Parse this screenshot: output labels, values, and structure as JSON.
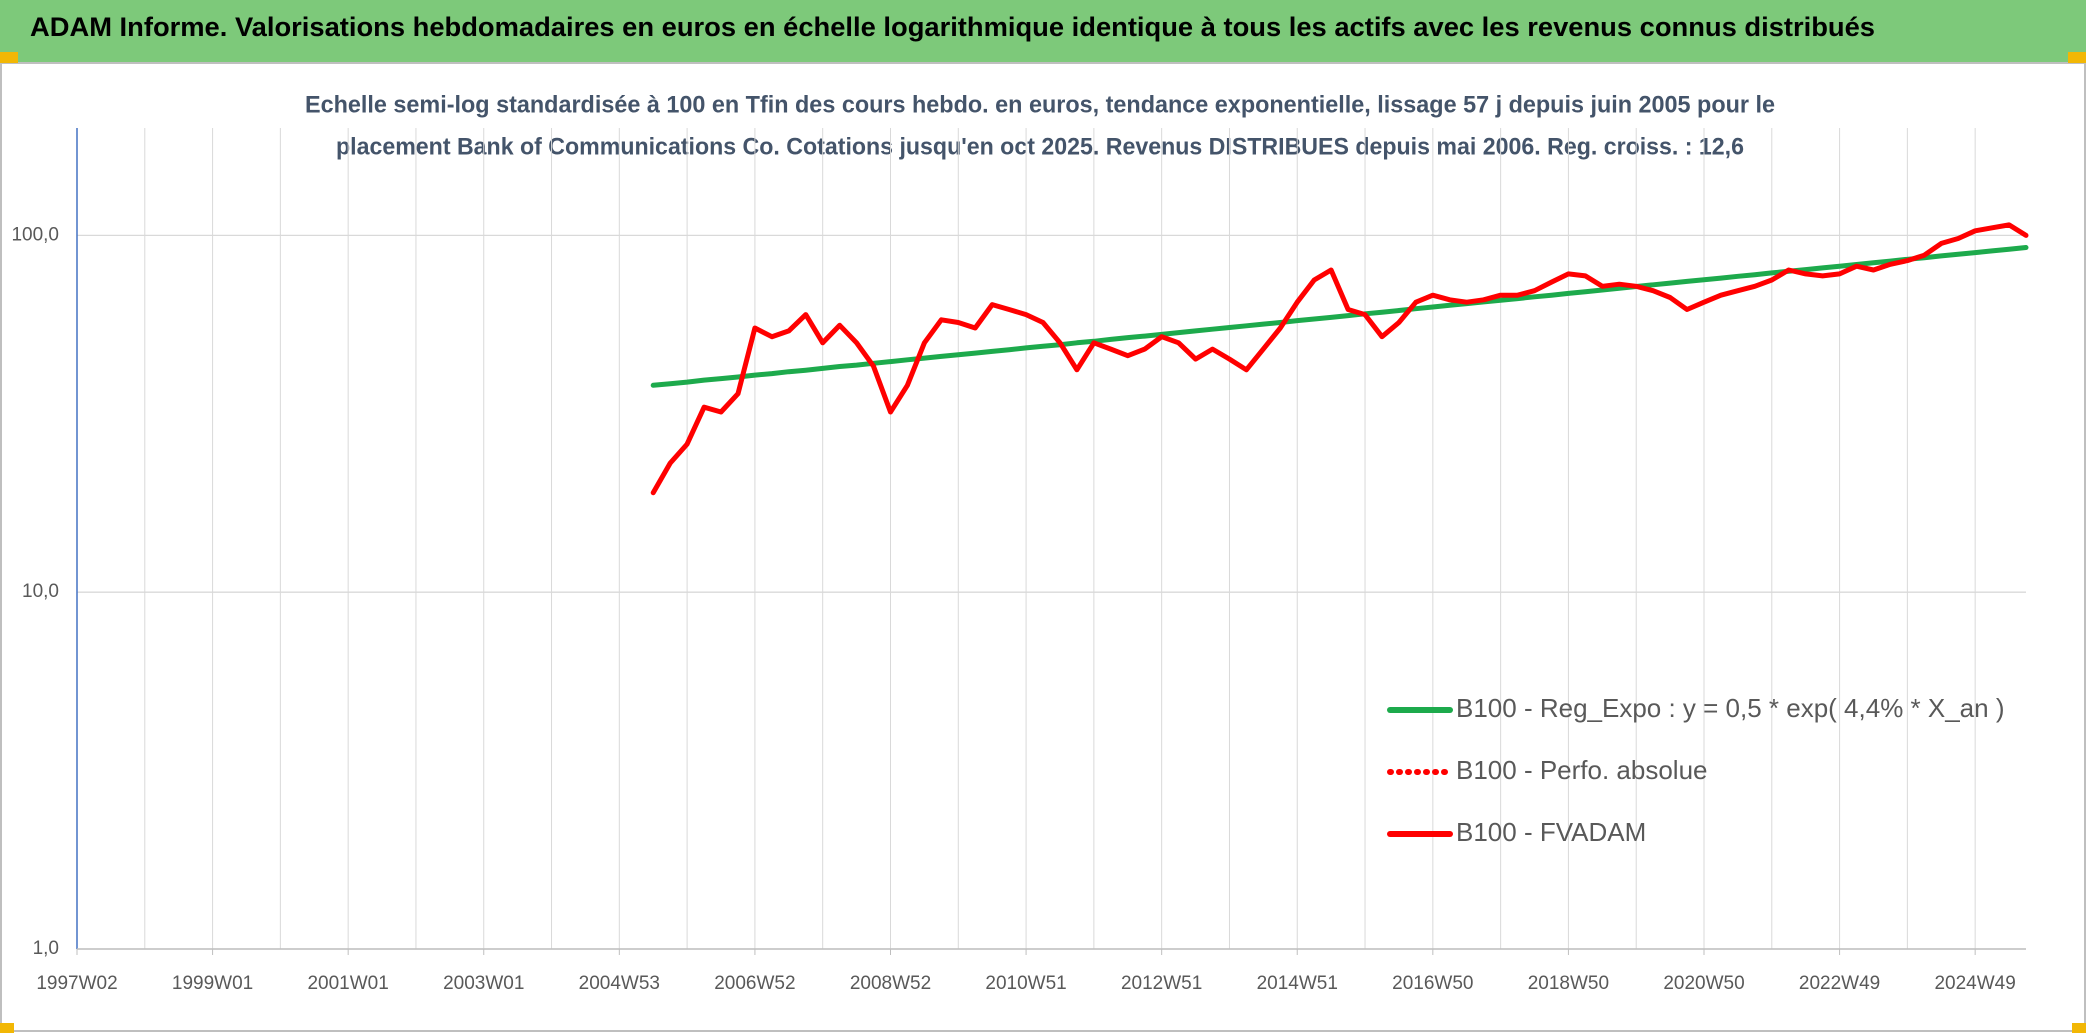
{
  "chart_data": {
    "type": "line",
    "title": "ADAM Informe. Valorisations hebdomadaires en euros en échelle logarithmique identique à tous les actifs avec les revenus connus distribués",
    "subtitle": [
      "Echelle semi-log standardisée à 100 en Tfin des cours hebdo. en euros, tendance exponentielle, lissage 57 j depuis juin 2005 pour le",
      "placement Bank of Communications Co. Cotations jusqu'en oct 2025. Revenus DISTRIBUES depuis mai 2006. Reg. croiss. : 12,6"
    ],
    "log_scale": true,
    "grid": true,
    "legend": "lower right",
    "ylim": [
      1,
      200
    ],
    "yticks": [
      {
        "value": 1,
        "label": "1,0"
      },
      {
        "value": 10,
        "label": "10,0"
      },
      {
        "value": 100,
        "label": "100,0"
      }
    ],
    "categories": [
      "1997W02",
      null,
      null,
      null,
      null,
      null,
      null,
      null,
      "1999W01",
      null,
      null,
      null,
      null,
      null,
      null,
      null,
      "2001W01",
      null,
      null,
      null,
      null,
      null,
      null,
      null,
      "2003W01",
      null,
      null,
      null,
      null,
      null,
      null,
      null,
      "2004W53",
      null,
      null,
      null,
      null,
      null,
      null,
      null,
      "2006W52",
      null,
      null,
      null,
      null,
      null,
      null,
      null,
      "2008W52",
      null,
      null,
      null,
      null,
      null,
      null,
      null,
      "2010W51",
      null,
      null,
      null,
      null,
      null,
      null,
      null,
      "2012W51",
      null,
      null,
      null,
      null,
      null,
      null,
      null,
      "2014W51",
      null,
      null,
      null,
      null,
      null,
      null,
      null,
      "2016W50",
      null,
      null,
      null,
      null,
      null,
      null,
      null,
      "2018W50",
      null,
      null,
      null,
      null,
      null,
      null,
      null,
      "2020W50",
      null,
      null,
      null,
      null,
      null,
      null,
      null,
      "2022W49",
      null,
      null,
      null,
      null,
      null,
      null,
      null,
      "2024W49",
      null,
      null,
      null
    ],
    "series": [
      {
        "name": "B100 - Reg_Expo : y = 0,5 * exp( 4,4% *  X_an )",
        "color": "#1daa4c",
        "style": "solid",
        "values": [
          null,
          null,
          null,
          null,
          null,
          null,
          null,
          null,
          null,
          null,
          null,
          null,
          null,
          null,
          null,
          null,
          null,
          null,
          null,
          null,
          null,
          null,
          null,
          null,
          null,
          null,
          null,
          null,
          null,
          null,
          null,
          null,
          null,
          null,
          38.0,
          38.4,
          38.8,
          39.3,
          39.7,
          40.1,
          40.6,
          41.0,
          41.5,
          41.9,
          42.4,
          42.9,
          43.3,
          43.8,
          44.3,
          44.8,
          45.3,
          45.8,
          46.3,
          46.8,
          47.3,
          47.8,
          48.4,
          48.9,
          49.4,
          50.0,
          50.5,
          51.1,
          51.7,
          52.2,
          52.8,
          53.4,
          54.0,
          54.6,
          55.2,
          55.8,
          56.4,
          57.0,
          57.7,
          58.3,
          58.9,
          59.6,
          60.3,
          60.9,
          61.6,
          62.3,
          63.0,
          63.7,
          64.4,
          65.1,
          65.8,
          66.5,
          67.3,
          68.0,
          68.8,
          69.5,
          70.3,
          71.1,
          71.9,
          72.7,
          73.5,
          74.3,
          75.1,
          75.9,
          76.8,
          77.6,
          78.5,
          79.3,
          80.2,
          81.1,
          82.0,
          82.9,
          83.8,
          84.7,
          85.7,
          86.6,
          87.6,
          88.5,
          89.5,
          90.5,
          91.5,
          92.5
        ]
      },
      {
        "name": "B100 - Perfo. absolue",
        "color": "#ff0000",
        "style": "dotted",
        "values": [
          null,
          null,
          null,
          null,
          null,
          null,
          null,
          null,
          null,
          null,
          null,
          null,
          null,
          null,
          null,
          null,
          null,
          null,
          null,
          null,
          null,
          null,
          null,
          null,
          null,
          null,
          null,
          null,
          null,
          null,
          null,
          null,
          null,
          null,
          19,
          23,
          26,
          33,
          32,
          36,
          55,
          52,
          54,
          60,
          50,
          56,
          50,
          43,
          32,
          38,
          50,
          58,
          57,
          55,
          64,
          62,
          60,
          57,
          50,
          42,
          50,
          48,
          46,
          48,
          52,
          50,
          45,
          48,
          45,
          42,
          48,
          55,
          65,
          75,
          80,
          62,
          60,
          52,
          57,
          65,
          68,
          66,
          65,
          66,
          68,
          68,
          70,
          74,
          78,
          77,
          72,
          73,
          72,
          70,
          67,
          62,
          65,
          68,
          70,
          72,
          75,
          80,
          78,
          77,
          78,
          82,
          80,
          83,
          85,
          88,
          95,
          98,
          103,
          105,
          107,
          100
        ]
      },
      {
        "name": "B100 - FVADAM",
        "color": "#ff0000",
        "style": "solid",
        "values": [
          null,
          null,
          null,
          null,
          null,
          null,
          null,
          null,
          null,
          null,
          null,
          null,
          null,
          null,
          null,
          null,
          null,
          null,
          null,
          null,
          null,
          null,
          null,
          null,
          null,
          null,
          null,
          null,
          null,
          null,
          null,
          null,
          null,
          null,
          19,
          23,
          26,
          33,
          32,
          36,
          55,
          52,
          54,
          60,
          50,
          56,
          50,
          43,
          32,
          38,
          50,
          58,
          57,
          55,
          64,
          62,
          60,
          57,
          50,
          42,
          50,
          48,
          46,
          48,
          52,
          50,
          45,
          48,
          45,
          42,
          48,
          55,
          65,
          75,
          80,
          62,
          60,
          52,
          57,
          65,
          68,
          66,
          65,
          66,
          68,
          68,
          70,
          74,
          78,
          77,
          72,
          73,
          72,
          70,
          67,
          62,
          65,
          68,
          70,
          72,
          75,
          80,
          78,
          77,
          78,
          82,
          80,
          83,
          85,
          88,
          95,
          98,
          103,
          105,
          107,
          100
        ]
      }
    ]
  }
}
